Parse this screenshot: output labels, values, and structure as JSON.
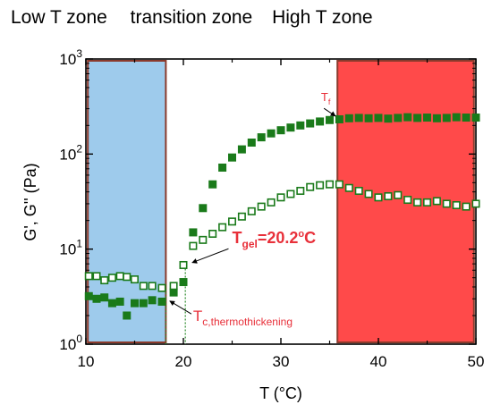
{
  "chart_data": {
    "type": "scatter",
    "xlabel": "T (°C)",
    "ylabel": "G', G'' (Pa)",
    "xlim": [
      10,
      50
    ],
    "ylim": [
      1,
      1000
    ],
    "yscale": "log",
    "xticks": [
      10,
      20,
      30,
      40,
      50
    ],
    "yticks": [
      1,
      10,
      100,
      1000
    ],
    "ytick_labels": [
      {
        "base": "10",
        "exp": "0"
      },
      {
        "base": "10",
        "exp": "1"
      },
      {
        "base": "10",
        "exp": "2"
      },
      {
        "base": "10",
        "exp": "3"
      }
    ],
    "zones_header": [
      {
        "label": "Low T zone",
        "color": "#2e9bd6"
      },
      {
        "label": "transition zone",
        "color": "#000000"
      },
      {
        "label": "High T zone",
        "color": "#e8303a"
      }
    ],
    "zone_boxes": [
      {
        "x_start": 10.2,
        "x_end": 18.2,
        "fill": "#9ecbec",
        "stroke": "#8b3a2c"
      },
      {
        "x_start": 35.8,
        "x_end": 49.8,
        "fill": "#ff4a4a",
        "stroke": "#8b3a2c"
      }
    ],
    "series": [
      {
        "marker": "filled-square",
        "color": "#1a7a1a",
        "points": [
          [
            10.3,
            3.2
          ],
          [
            11.1,
            3.0
          ],
          [
            11.9,
            3.1
          ],
          [
            12.7,
            2.7
          ],
          [
            13.5,
            2.8
          ],
          [
            14.2,
            2.0
          ],
          [
            15.0,
            2.7
          ],
          [
            15.9,
            2.7
          ],
          [
            16.8,
            2.9
          ],
          [
            17.8,
            2.8
          ],
          [
            19.0,
            3.5
          ],
          [
            20.0,
            4.5
          ],
          [
            21.0,
            15
          ],
          [
            22.0,
            27
          ],
          [
            23.0,
            48
          ],
          [
            24.0,
            72
          ],
          [
            25.0,
            92
          ],
          [
            26.0,
            112
          ],
          [
            27.0,
            132
          ],
          [
            28.0,
            150
          ],
          [
            29.0,
            165
          ],
          [
            30.0,
            178
          ],
          [
            31.0,
            190
          ],
          [
            32.0,
            200
          ],
          [
            33.0,
            210
          ],
          [
            34.0,
            220
          ],
          [
            35.0,
            228
          ],
          [
            36.0,
            232
          ],
          [
            37.0,
            238
          ],
          [
            38.0,
            240
          ],
          [
            39.0,
            238
          ],
          [
            40.0,
            240
          ],
          [
            41.0,
            236
          ],
          [
            42.0,
            240
          ],
          [
            43.0,
            244
          ],
          [
            44.0,
            240
          ],
          [
            45.0,
            242
          ],
          [
            46.0,
            238
          ],
          [
            47.0,
            240
          ],
          [
            48.0,
            244
          ],
          [
            49.0,
            242
          ],
          [
            50.0,
            242
          ]
        ]
      },
      {
        "marker": "open-square",
        "color": "#1a7a1a",
        "points": [
          [
            10.3,
            5.2
          ],
          [
            11.1,
            5.2
          ],
          [
            11.9,
            4.7
          ],
          [
            12.7,
            5.0
          ],
          [
            13.5,
            5.2
          ],
          [
            14.2,
            5.1
          ],
          [
            15.0,
            4.8
          ],
          [
            15.9,
            4.1
          ],
          [
            16.8,
            4.1
          ],
          [
            17.8,
            3.9
          ],
          [
            19.0,
            4.1
          ],
          [
            20.0,
            6.8
          ],
          [
            21.0,
            10.8
          ],
          [
            22.0,
            12.5
          ],
          [
            23.0,
            14.5
          ],
          [
            24.0,
            17
          ],
          [
            25.0,
            19.5
          ],
          [
            26.0,
            22
          ],
          [
            27.0,
            25
          ],
          [
            28.0,
            28
          ],
          [
            29.0,
            31
          ],
          [
            30.0,
            35
          ],
          [
            31.0,
            38
          ],
          [
            32.0,
            41
          ],
          [
            33.0,
            45
          ],
          [
            34.0,
            47
          ],
          [
            35.0,
            48
          ],
          [
            36.0,
            48
          ],
          [
            37.0,
            44
          ],
          [
            38.0,
            41
          ],
          [
            39.0,
            38
          ],
          [
            40.0,
            35
          ],
          [
            41.0,
            36
          ],
          [
            42.0,
            37
          ],
          [
            43.0,
            33
          ],
          [
            44.0,
            31
          ],
          [
            45.0,
            31
          ],
          [
            46.0,
            32
          ],
          [
            47.0,
            30
          ],
          [
            48.0,
            29
          ],
          [
            49.0,
            28
          ],
          [
            50.0,
            30
          ]
        ]
      }
    ],
    "annotations": [
      {
        "id": "tf",
        "label": "T",
        "sub": "f",
        "color": "#e8303a",
        "x": 34.6,
        "y": 360
      },
      {
        "id": "tgel",
        "label": "T",
        "sub": "gel",
        "value": "=20.2",
        "sup": "o",
        "unit": "C",
        "color": "#e8303a",
        "x": 25.0,
        "y": 11.5
      },
      {
        "id": "tc",
        "label": "T",
        "sub": "c,thermothickening",
        "color": "#e8303a",
        "x": 21.0,
        "y": 1.75
      }
    ]
  }
}
